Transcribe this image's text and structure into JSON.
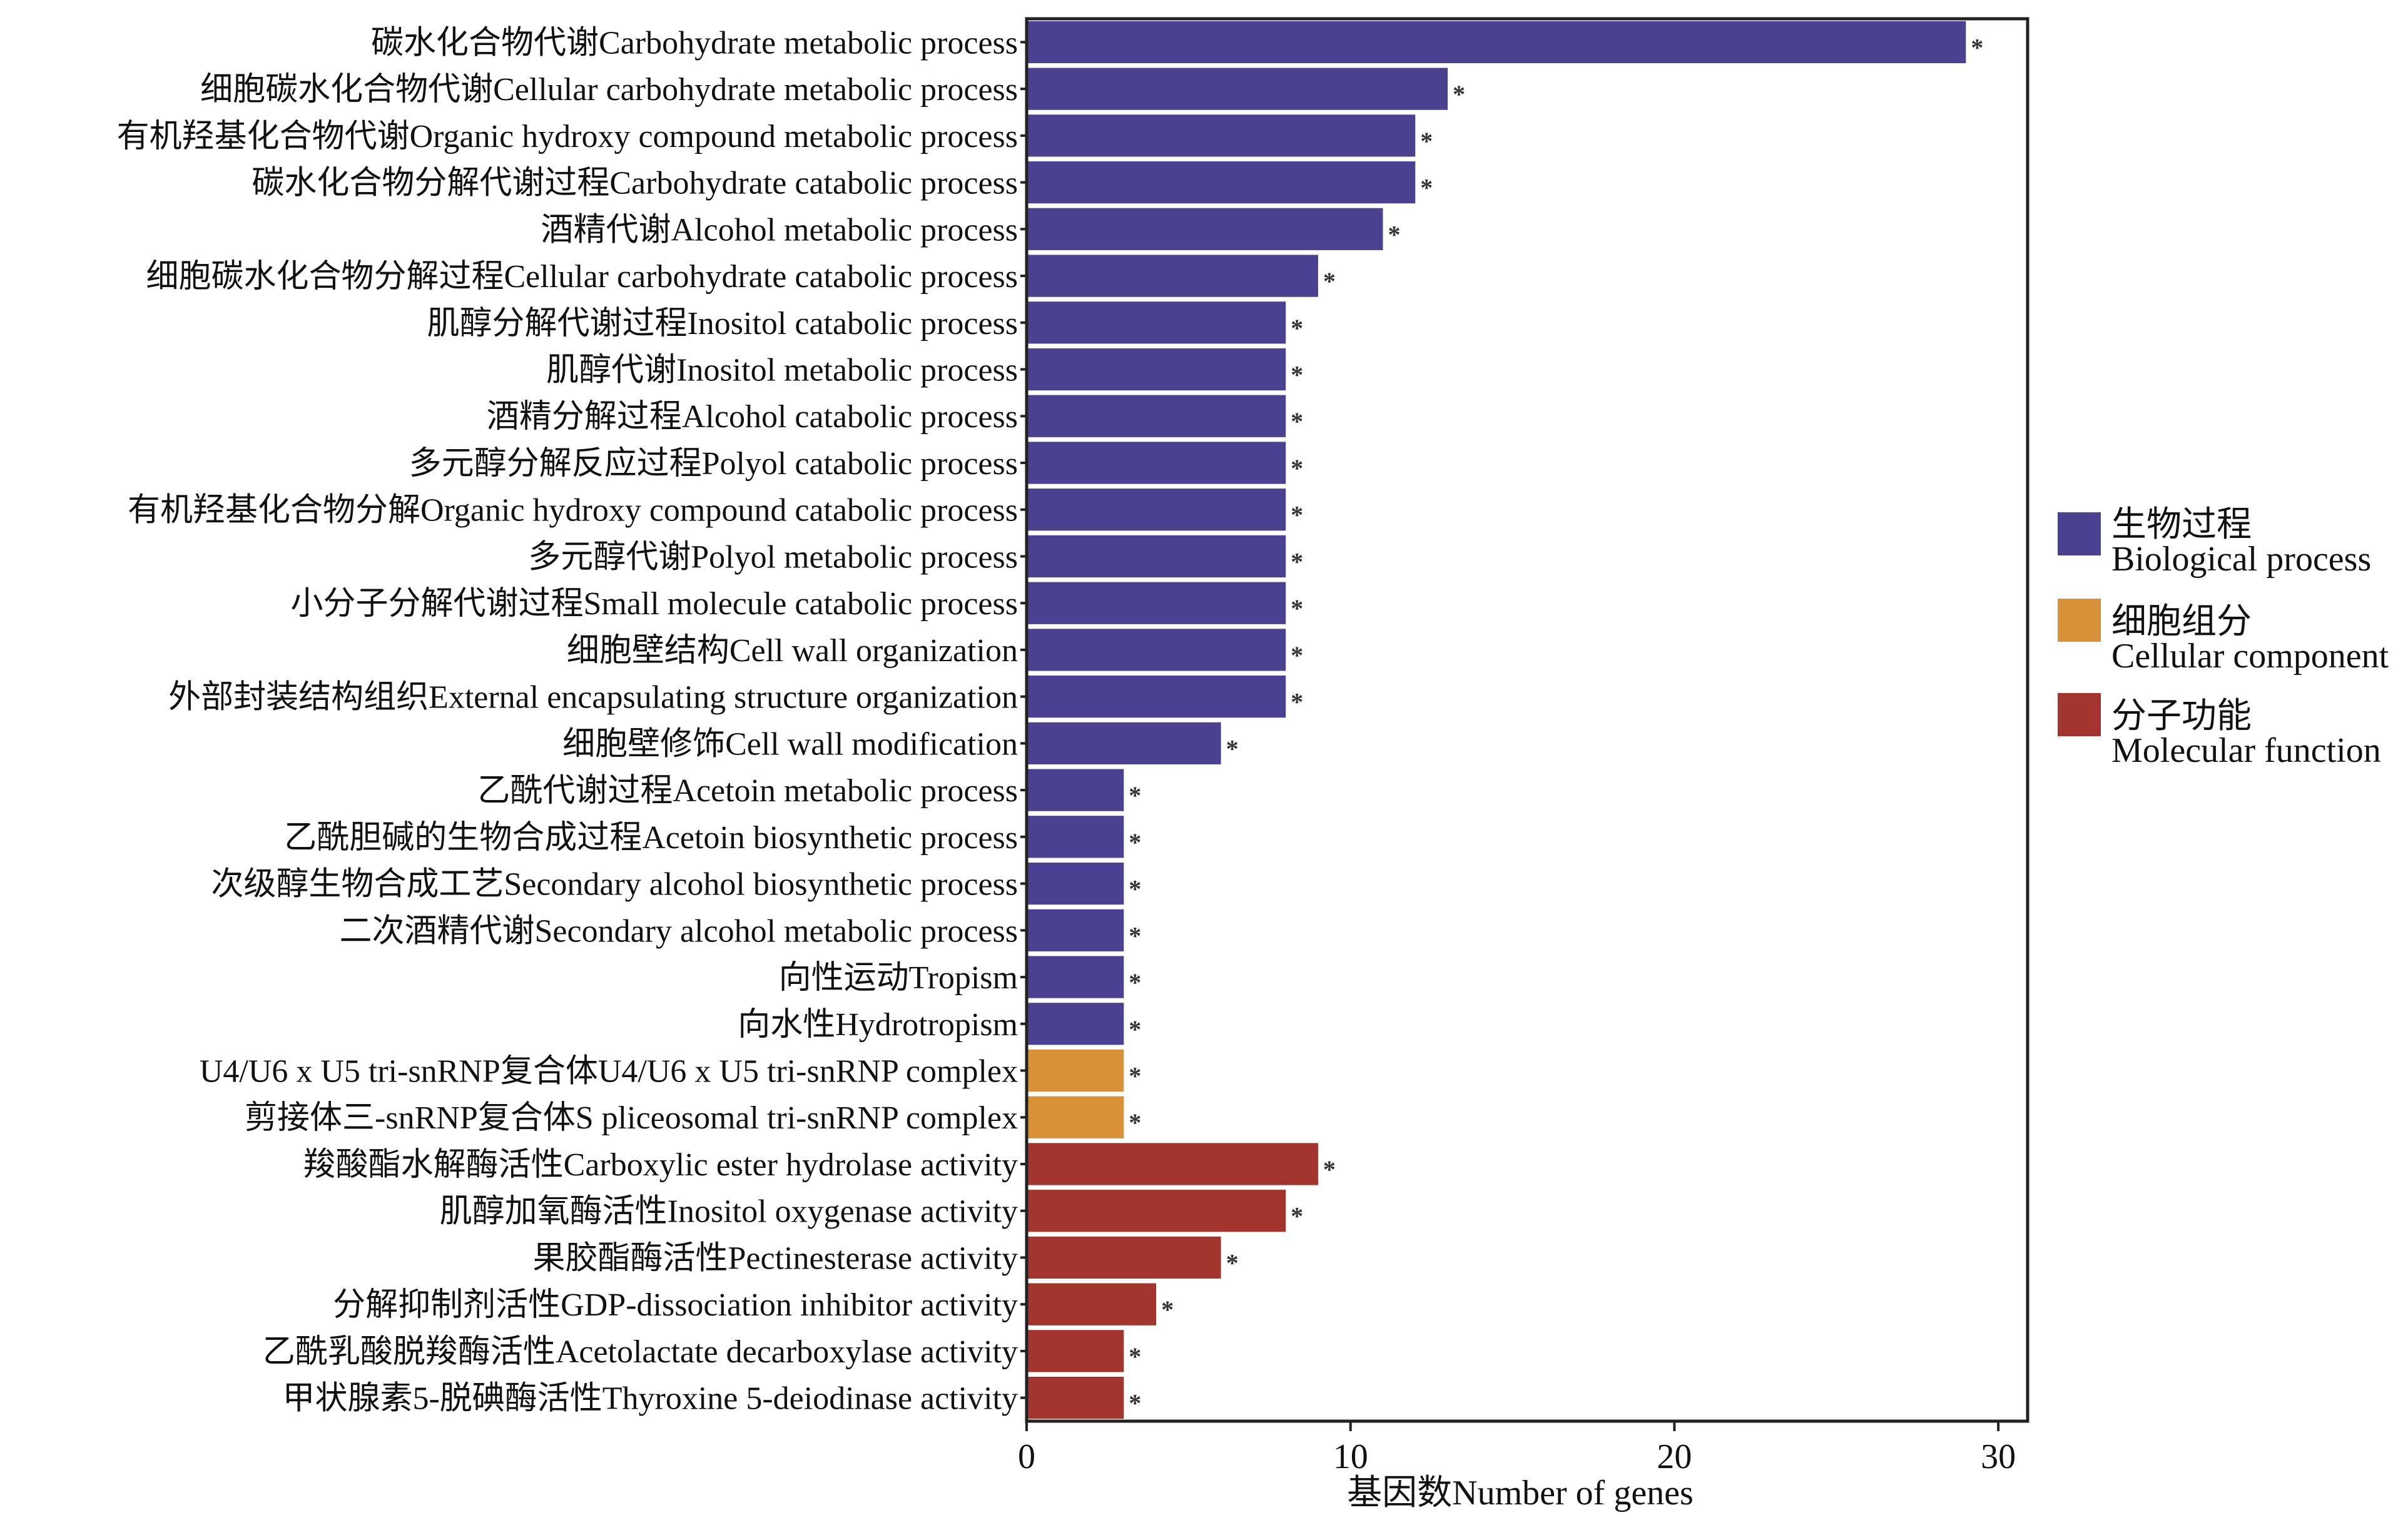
{
  "chart_data": {
    "type": "bar",
    "orientation": "horizontal",
    "xlabel": "基因数Number of genes",
    "ylabel": "",
    "xlim": [
      0,
      31
    ],
    "xticks": [
      "0",
      "10",
      "20",
      "30"
    ],
    "grid": false,
    "legend_position": "right",
    "significance_mark": "*",
    "colors": {
      "BP": "#4a4290",
      "CC": "#d99138",
      "MF": "#a3342e"
    },
    "legend": [
      {
        "key": "BP",
        "zh": "生物过程",
        "en": "Biological process"
      },
      {
        "key": "CC",
        "zh": "细胞组分",
        "en": "Cellular component"
      },
      {
        "key": "MF",
        "zh": "分子功能",
        "en": "Molecular function"
      }
    ],
    "categories": [
      "碳水化合物代谢Carbohydrate metabolic process",
      "细胞碳水化合物代谢Cellular carbohydrate metabolic process",
      "有机羟基化合物代谢Organic hydroxy compound metabolic process",
      "碳水化合物分解代谢过程Carbohydrate catabolic process",
      "酒精代谢Alcohol metabolic process",
      "细胞碳水化合物分解过程Cellular carbohydrate catabolic process",
      "肌醇分解代谢过程Inositol catabolic process",
      "肌醇代谢Inositol metabolic process",
      "酒精分解过程Alcohol catabolic process",
      "多元醇分解反应过程Polyol catabolic process",
      "有机羟基化合物分解Organic hydroxy compound catabolic process",
      "多元醇代谢Polyol metabolic process",
      "小分子分解代谢过程Small molecule catabolic process",
      "细胞壁结构Cell wall organization",
      "外部封装结构组织External encapsulating structure organization",
      "细胞壁修饰Cell wall modification",
      "乙酰代谢过程Acetoin metabolic process",
      "乙酰胆碱的生物合成过程Acetoin biosynthetic process",
      "次级醇生物合成工艺Secondary alcohol biosynthetic process",
      "二次酒精代谢Secondary alcohol metabolic process",
      "向性运动Tropism",
      "向水性Hydrotropism",
      "U4/U6 x U5 tri-snRNP复合体U4/U6 x U5 tri-snRNP complex",
      "剪接体三-snRNP复合体S pliceosomal tri-snRNP complex",
      "羧酸酯水解酶活性Carboxylic ester hydrolase activity",
      "肌醇加氧酶活性Inositol oxygenase activity",
      "果胶酯酶活性Pectinesterase activity",
      "分解抑制剂活性GDP-dissociation inhibitor activity",
      "乙酰乳酸脱羧酶活性Acetolactate decarboxylase activity",
      "甲状腺素5-脱碘酶活性Thyroxine 5-deiodinase activity"
    ],
    "values": [
      29,
      13,
      12,
      12,
      11,
      9,
      8,
      8,
      8,
      8,
      8,
      8,
      8,
      8,
      8,
      6,
      3,
      3,
      3,
      3,
      3,
      3,
      3,
      3,
      9,
      8,
      6,
      4,
      3,
      3
    ],
    "groups": [
      "BP",
      "BP",
      "BP",
      "BP",
      "BP",
      "BP",
      "BP",
      "BP",
      "BP",
      "BP",
      "BP",
      "BP",
      "BP",
      "BP",
      "BP",
      "BP",
      "BP",
      "BP",
      "BP",
      "BP",
      "BP",
      "BP",
      "CC",
      "CC",
      "MF",
      "MF",
      "MF",
      "MF",
      "MF",
      "MF"
    ]
  }
}
